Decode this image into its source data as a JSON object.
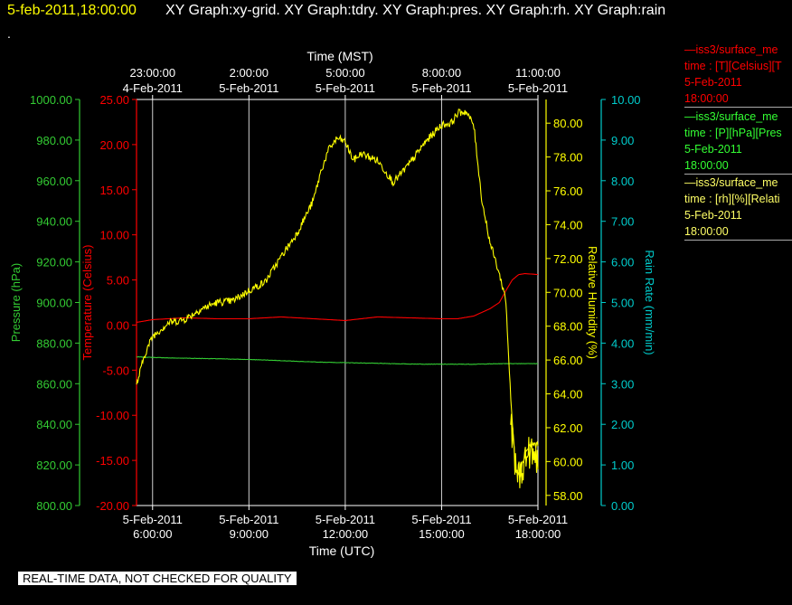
{
  "header": {
    "datetime": "5-feb-2011,18:00:00",
    "graphs": "XY Graph:xy-grid.  XY Graph:tdry.  XY Graph:pres.  XY Graph:rh.  XY Graph:rain",
    "dot": "."
  },
  "legend": [
    {
      "line1": "—iss3/surface_me",
      "line2": "time : [T][Celsius][T",
      "line3": "5-Feb-2011",
      "line4": "18:00:00",
      "color": "#ff0000"
    },
    {
      "line1": "—iss3/surface_me",
      "line2": "time : [P][hPa][Pres",
      "line3": "5-Feb-2011",
      "line4": "18:00:00",
      "color": "#33ff33"
    },
    {
      "line1": "—iss3/surface_me",
      "line2": "time : [rh][%][Relati",
      "line3": "5-Feb-2011",
      "line4": "18:00:00",
      "color": "#ffff66"
    }
  ],
  "footer": "REAL-TIME DATA, NOT CHECKED FOR QUALITY",
  "chart_data": {
    "type": "line",
    "grid": true,
    "x_bottom": {
      "label": "Time (UTC)",
      "range_hours": [
        5.5,
        18
      ],
      "ticks": [
        {
          "h": 6,
          "date": "5-Feb-2011",
          "time": "6:00:00"
        },
        {
          "h": 9,
          "date": "5-Feb-2011",
          "time": "9:00:00"
        },
        {
          "h": 12,
          "date": "5-Feb-2011",
          "time": "12:00:00"
        },
        {
          "h": 15,
          "date": "5-Feb-2011",
          "time": "15:00:00"
        },
        {
          "h": 18,
          "date": "5-Feb-2011",
          "time": "18:00:00"
        }
      ]
    },
    "x_top": {
      "label": "Time (MST)",
      "ticks": [
        {
          "h": 6,
          "time": "23:00:00",
          "date": "4-Feb-2011"
        },
        {
          "h": 9,
          "time": "2:00:00",
          "date": "5-Feb-2011"
        },
        {
          "h": 12,
          "time": "5:00:00",
          "date": "5-Feb-2011"
        },
        {
          "h": 15,
          "time": "8:00:00",
          "date": "5-Feb-2011"
        },
        {
          "h": 18,
          "time": "11:00:00",
          "date": "5-Feb-2011"
        }
      ]
    },
    "axes": [
      {
        "id": "pres",
        "label": "Pressure (hPa)",
        "color": "#33cc33",
        "range": [
          800,
          1000
        ],
        "ticks": [
          "800.00",
          "820.00",
          "840.00",
          "860.00",
          "880.00",
          "900.00",
          "920.00",
          "940.00",
          "960.00",
          "980.00",
          "1000.00"
        ]
      },
      {
        "id": "temp",
        "label": "Temperature (Celsius)",
        "color": "#ff0000",
        "range": [
          -20,
          25
        ],
        "ticks": [
          "-20.00",
          "-15.00",
          "-10.00",
          "-5.00",
          "0.00",
          "5.00",
          "10.00",
          "15.00",
          "20.00",
          "25.00"
        ]
      },
      {
        "id": "rh",
        "label": "Relative Humidity (%)",
        "color": "#ffff00",
        "range": [
          57.4,
          81.4
        ],
        "ticks": [
          "58.00",
          "60.00",
          "62.00",
          "64.00",
          "66.00",
          "68.00",
          "70.00",
          "72.00",
          "74.00",
          "76.00",
          "78.00",
          "80.00"
        ]
      },
      {
        "id": "rain",
        "label": "Rain Rate (mm/min)",
        "color": "#00cccc",
        "range": [
          0,
          10
        ],
        "ticks": [
          "0.00",
          "1.00",
          "2.00",
          "3.00",
          "4.00",
          "5.00",
          "6.00",
          "7.00",
          "8.00",
          "9.00",
          "10.00"
        ]
      }
    ],
    "series": [
      {
        "axis": "temp",
        "color": "#ff0000",
        "x": [
          5.5,
          6.0,
          7.0,
          8.0,
          9.0,
          10.0,
          11.0,
          12.0,
          13.0,
          14.0,
          15.0,
          15.5,
          16.0,
          16.5,
          16.8,
          17.0,
          17.2,
          17.4,
          17.6,
          18.0
        ],
        "y": [
          0.3,
          0.6,
          0.8,
          0.7,
          0.7,
          0.9,
          0.7,
          0.5,
          0.9,
          0.8,
          0.7,
          0.7,
          1.0,
          1.8,
          2.5,
          3.8,
          5.0,
          5.6,
          5.7,
          5.6
        ]
      },
      {
        "axis": "pres",
        "color": "#33cc33",
        "x": [
          5.5,
          6.5,
          8.0,
          9.5,
          11.0,
          12.5,
          14.0,
          15.0,
          16.0,
          17.0,
          18.0
        ],
        "y": [
          873.2,
          872.7,
          872.3,
          871.7,
          870.7,
          870.2,
          869.7,
          869.6,
          869.6,
          869.9,
          869.9
        ],
        "noise": 0.1
      },
      {
        "axis": "rh",
        "color": "#ffff00",
        "x": [
          5.5,
          5.75,
          6.0,
          6.5,
          7.0,
          7.5,
          8.0,
          8.5,
          9.0,
          9.5,
          10.0,
          10.5,
          11.0,
          11.25,
          11.5,
          11.75,
          12.0,
          12.25,
          12.5,
          13.0,
          13.5,
          14.0,
          14.5,
          15.0,
          15.3,
          15.5,
          15.75,
          16.0,
          16.25,
          16.5,
          16.75,
          17.0,
          17.15,
          17.3,
          17.45,
          17.6,
          17.75,
          18.0
        ],
        "y": [
          64.5,
          66.3,
          67.4,
          68.2,
          68.4,
          69.0,
          69.4,
          69.5,
          70.1,
          70.6,
          72.1,
          73.5,
          75.4,
          77.2,
          78.5,
          79.1,
          78.9,
          77.8,
          78.2,
          77.8,
          76.5,
          77.6,
          78.9,
          79.9,
          80.0,
          80.6,
          80.7,
          79.9,
          75.5,
          73.0,
          71.4,
          69.6,
          63.8,
          59.6,
          59.3,
          60.5,
          61.0,
          61.0
        ],
        "noise": 0.22
      },
      {
        "axis": "rh",
        "color": "#ffff00",
        "noise": 1.0,
        "x": [
          17.15,
          17.3,
          17.45,
          17.6,
          17.75,
          17.9,
          18.0
        ],
        "y": [
          62.4,
          59.5,
          59.2,
          60.2,
          60.6,
          60.1,
          60.4
        ]
      }
    ]
  }
}
